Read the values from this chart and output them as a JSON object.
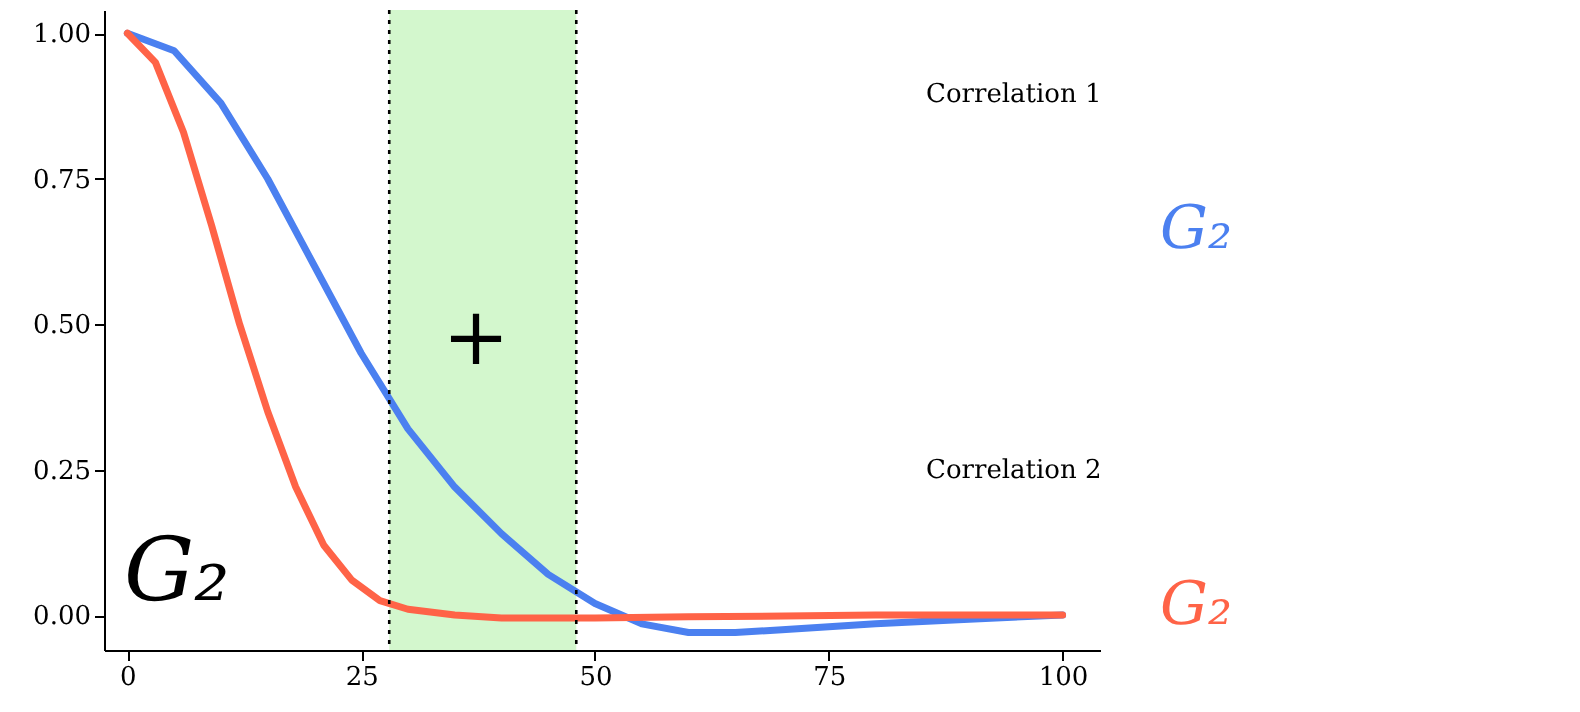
{
  "chart_data": {
    "type": "line",
    "xlim": [
      -2.5,
      104
    ],
    "ylim": [
      -0.06,
      1.04
    ],
    "xticks": [
      0,
      25,
      50,
      75,
      100
    ],
    "yticks": [
      {
        "value": 0,
        "label": "0.00"
      },
      {
        "value": 0.25,
        "label": "0.25"
      },
      {
        "value": 0.5,
        "label": "0.50"
      },
      {
        "value": 0.75,
        "label": "0.75"
      },
      {
        "value": 1,
        "label": "1.00"
      }
    ],
    "series": [
      {
        "color": "#4b80f0",
        "x": [
          0,
          5,
          10,
          15,
          20,
          25,
          30,
          35,
          40,
          45,
          50,
          55,
          60,
          65,
          70,
          80,
          90,
          100
        ],
        "values": [
          1.0,
          0.97,
          0.88,
          0.75,
          0.6,
          0.45,
          0.32,
          0.22,
          0.14,
          0.07,
          0.02,
          -0.015,
          -0.03,
          -0.03,
          -0.025,
          -0.015,
          -0.007,
          0
        ]
      },
      {
        "color": "#ff6347",
        "x": [
          0,
          3,
          6,
          9,
          12,
          15,
          18,
          21,
          24,
          27,
          30,
          35,
          40,
          50,
          60,
          80,
          100
        ],
        "values": [
          1.0,
          0.95,
          0.83,
          0.67,
          0.5,
          0.35,
          0.22,
          0.12,
          0.06,
          0.025,
          0.01,
          0.0,
          -0.005,
          -0.005,
          -0.003,
          0,
          0
        ]
      }
    ],
    "bands": [
      {
        "axis": "x",
        "from": 28,
        "to": 48,
        "color": "#c8f5c0"
      }
    ],
    "ref_lines": [
      {
        "axis": "x",
        "value": 28,
        "color": "#000000",
        "line_style": "dotted"
      },
      {
        "axis": "x",
        "value": 48,
        "color": "#000000",
        "line_style": "dotted"
      }
    ],
    "annotations": [
      "+",
      "G₂",
      "Correlation 1",
      "Correlation 2",
      "G₂",
      "G₂"
    ],
    "grid": false,
    "line_style": "solid"
  }
}
